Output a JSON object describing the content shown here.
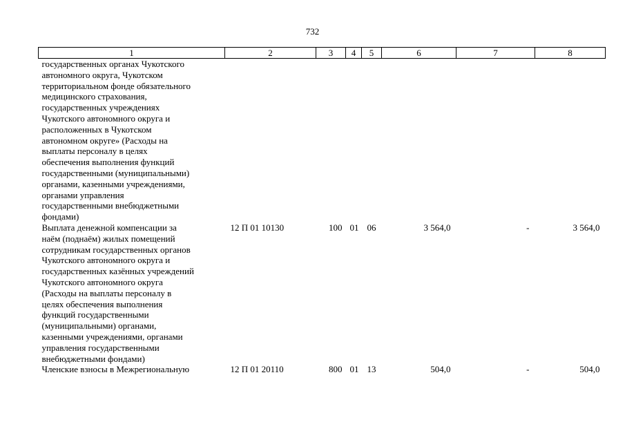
{
  "page_number": "732",
  "table": {
    "headers": [
      "1",
      "2",
      "3",
      "4",
      "5",
      "6",
      "7",
      "8"
    ],
    "rows": [
      {
        "description": "государственных органах Чукотского\nавтономного округа, Чукотском\nтерриториальном фонде обязательного\nмедицинского страхования,\nгосударственных учреждениях\nЧукотского автономного округа и\nрасположенных в Чукотском\nавтономном округе» (Расходы на\nвыплаты персоналу в целях\nобеспечения выполнения функций\nгосударственными (муниципальными)\nорганами, казенными учреждениями,\nорганами управления\nгосударственными внебюджетными\nфондами)",
        "code": "",
        "c3": "",
        "c4": "",
        "c5": "",
        "c6": "",
        "c7": "",
        "c8": ""
      },
      {
        "description": "Выплата денежной компенсации за\nнаём (поднаём) жилых помещений\nсотрудникам государственных органов\nЧукотского автономного округа и\nгосударственных казённых учреждений\nЧукотского автономного округа\n(Расходы на выплаты персоналу в\nцелях обеспечения выполнения\nфункций государственными\n(муниципальными) органами,\nказенными учреждениями, органами\nуправления государственными\nвнебюджетными фондами)",
        "code": "12 П 01 10130",
        "c3": "100",
        "c4": "01",
        "c5": "06",
        "c6": "3 564,0",
        "c7": "-",
        "c8": "3 564,0"
      },
      {
        "description": "Членские взносы в Межрегиональную",
        "code": "12 П 01 20110",
        "c3": "800",
        "c4": "01",
        "c5": "13",
        "c6": "504,0",
        "c7": "-",
        "c8": "504,0"
      }
    ]
  }
}
